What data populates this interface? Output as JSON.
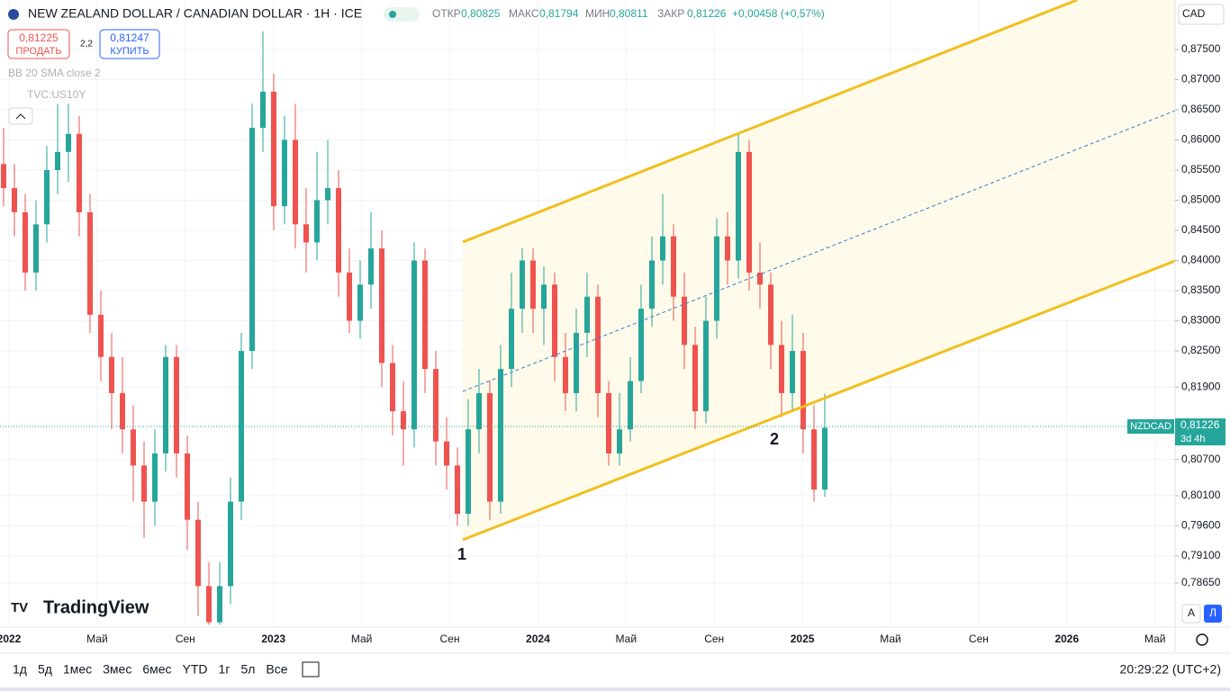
{
  "ui": {
    "symbol": "NEW ZEALAND DOLLAR / CANADIAN DOLLAR · 1H · ICE",
    "ohlc": [
      {
        "label": "ОТКР",
        "value": "0,80825"
      },
      {
        "label": "МАКС",
        "value": "0,81794"
      },
      {
        "label": "МИН",
        "value": "0,80811"
      },
      {
        "label": "ЗАКР",
        "value": "0,81226"
      }
    ],
    "change": "+0,00458 (+0,57%)",
    "sell": {
      "price": "0,81225",
      "label": "ПРОДАТЬ"
    },
    "spread": "2,2",
    "buy": {
      "price": "0,81247",
      "label": "КУПИТЬ"
    },
    "indicators": [
      "BB 20 SMA close 2",
      "TVC:US10Y"
    ],
    "currency": "CAD",
    "ticker": "NZDCAD",
    "last_price": "0,81226",
    "countdown": "3d 4h",
    "logo": "TradingView",
    "scale_buttons": [
      "A",
      "Л"
    ],
    "timeframes": [
      "1д",
      "5д",
      "1мес",
      "3мес",
      "6мес",
      "YTD",
      "1г",
      "5л",
      "Все"
    ],
    "clock": "20:29:22 (UTC+2)"
  },
  "chart_data": {
    "type": "candlestick",
    "up_color": "#26a69a",
    "down_color": "#ef5350",
    "xticks": [
      "2022",
      "Май",
      "Сен",
      "2023",
      "Май",
      "Сен",
      "2024",
      "Май",
      "Сен",
      "2025",
      "Май",
      "Сен",
      "2026",
      "Май"
    ],
    "annotations": [
      "1",
      "2"
    ],
    "ylim": [
      0.7792,
      0.8832
    ],
    "yticks": [
      {
        "value": 0.875,
        "label": "0,87500"
      },
      {
        "value": 0.87,
        "label": "0,87000"
      },
      {
        "value": 0.865,
        "label": "0,86500"
      },
      {
        "value": 0.86,
        "label": "0,86000"
      },
      {
        "value": 0.855,
        "label": "0,85500"
      },
      {
        "value": 0.85,
        "label": "0,85000"
      },
      {
        "value": 0.845,
        "label": "0,84500"
      },
      {
        "value": 0.84,
        "label": "0,84000"
      },
      {
        "value": 0.835,
        "label": "0,83500"
      },
      {
        "value": 0.83,
        "label": "0,83000"
      },
      {
        "value": 0.825,
        "label": "0,82500"
      },
      {
        "value": 0.819,
        "label": "0,81900"
      },
      {
        "value": 0.807,
        "label": "0,80700"
      },
      {
        "value": 0.801,
        "label": "0,80100"
      },
      {
        "value": 0.796,
        "label": "0,79600"
      },
      {
        "value": 0.791,
        "label": "0,79100"
      },
      {
        "value": 0.7865,
        "label": "0,78650"
      }
    ],
    "candles": [
      [
        0.856,
        0.862,
        0.849,
        0.852
      ],
      [
        0.852,
        0.856,
        0.844,
        0.848
      ],
      [
        0.848,
        0.851,
        0.835,
        0.838
      ],
      [
        0.838,
        0.85,
        0.835,
        0.846
      ],
      [
        0.846,
        0.859,
        0.843,
        0.855
      ],
      [
        0.855,
        0.866,
        0.851,
        0.858
      ],
      [
        0.858,
        0.866,
        0.853,
        0.861
      ],
      [
        0.861,
        0.864,
        0.844,
        0.848
      ],
      [
        0.848,
        0.851,
        0.828,
        0.831
      ],
      [
        0.831,
        0.835,
        0.82,
        0.824
      ],
      [
        0.824,
        0.828,
        0.812,
        0.818
      ],
      [
        0.818,
        0.824,
        0.808,
        0.812
      ],
      [
        0.812,
        0.816,
        0.8,
        0.806
      ],
      [
        0.806,
        0.81,
        0.794,
        0.8
      ],
      [
        0.8,
        0.812,
        0.796,
        0.808
      ],
      [
        0.808,
        0.826,
        0.805,
        0.824
      ],
      [
        0.824,
        0.826,
        0.804,
        0.808
      ],
      [
        0.808,
        0.811,
        0.792,
        0.797
      ],
      [
        0.797,
        0.8,
        0.781,
        0.786
      ],
      [
        0.786,
        0.79,
        0.7796,
        0.78
      ],
      [
        0.78,
        0.79,
        0.7796,
        0.786
      ],
      [
        0.786,
        0.804,
        0.783,
        0.8
      ],
      [
        0.8,
        0.828,
        0.797,
        0.825
      ],
      [
        0.825,
        0.866,
        0.822,
        0.862
      ],
      [
        0.862,
        0.878,
        0.858,
        0.868
      ],
      [
        0.868,
        0.871,
        0.845,
        0.849
      ],
      [
        0.849,
        0.864,
        0.846,
        0.86
      ],
      [
        0.86,
        0.866,
        0.842,
        0.846
      ],
      [
        0.846,
        0.852,
        0.838,
        0.843
      ],
      [
        0.843,
        0.858,
        0.84,
        0.85
      ],
      [
        0.85,
        0.86,
        0.846,
        0.852
      ],
      [
        0.852,
        0.855,
        0.834,
        0.838
      ],
      [
        0.838,
        0.842,
        0.828,
        0.83
      ],
      [
        0.83,
        0.84,
        0.827,
        0.836
      ],
      [
        0.836,
        0.848,
        0.832,
        0.842
      ],
      [
        0.842,
        0.845,
        0.819,
        0.823
      ],
      [
        0.823,
        0.826,
        0.811,
        0.815
      ],
      [
        0.815,
        0.82,
        0.806,
        0.812
      ],
      [
        0.812,
        0.843,
        0.809,
        0.84
      ],
      [
        0.84,
        0.842,
        0.818,
        0.822
      ],
      [
        0.822,
        0.825,
        0.806,
        0.81
      ],
      [
        0.81,
        0.814,
        0.802,
        0.806
      ],
      [
        0.806,
        0.809,
        0.796,
        0.798
      ],
      [
        0.798,
        0.817,
        0.796,
        0.812
      ],
      [
        0.812,
        0.822,
        0.808,
        0.818
      ],
      [
        0.818,
        0.82,
        0.797,
        0.8
      ],
      [
        0.8,
        0.826,
        0.798,
        0.822
      ],
      [
        0.822,
        0.838,
        0.819,
        0.832
      ],
      [
        0.832,
        0.842,
        0.828,
        0.84
      ],
      [
        0.84,
        0.842,
        0.828,
        0.832
      ],
      [
        0.832,
        0.839,
        0.826,
        0.836
      ],
      [
        0.836,
        0.838,
        0.82,
        0.824
      ],
      [
        0.824,
        0.828,
        0.815,
        0.818
      ],
      [
        0.818,
        0.832,
        0.815,
        0.828
      ],
      [
        0.828,
        0.838,
        0.824,
        0.834
      ],
      [
        0.834,
        0.836,
        0.814,
        0.818
      ],
      [
        0.818,
        0.82,
        0.806,
        0.808
      ],
      [
        0.808,
        0.818,
        0.806,
        0.812
      ],
      [
        0.812,
        0.824,
        0.81,
        0.82
      ],
      [
        0.82,
        0.836,
        0.818,
        0.832
      ],
      [
        0.832,
        0.844,
        0.829,
        0.84
      ],
      [
        0.84,
        0.851,
        0.836,
        0.844
      ],
      [
        0.844,
        0.846,
        0.83,
        0.834
      ],
      [
        0.834,
        0.838,
        0.822,
        0.826
      ],
      [
        0.826,
        0.829,
        0.812,
        0.815
      ],
      [
        0.815,
        0.834,
        0.813,
        0.83
      ],
      [
        0.83,
        0.847,
        0.827,
        0.844
      ],
      [
        0.844,
        0.848,
        0.836,
        0.84
      ],
      [
        0.84,
        0.861,
        0.837,
        0.858
      ],
      [
        0.858,
        0.86,
        0.835,
        0.838
      ],
      [
        0.838,
        0.843,
        0.832,
        0.836
      ],
      [
        0.836,
        0.838,
        0.822,
        0.826
      ],
      [
        0.826,
        0.83,
        0.814,
        0.818
      ],
      [
        0.818,
        0.831,
        0.815,
        0.825
      ],
      [
        0.825,
        0.828,
        0.808,
        0.812
      ],
      [
        0.812,
        0.816,
        0.8,
        0.802
      ],
      [
        0.802,
        0.8179,
        0.8008,
        0.81226
      ]
    ]
  }
}
